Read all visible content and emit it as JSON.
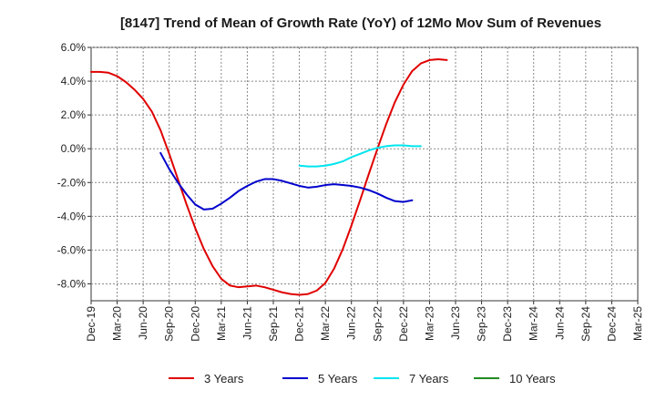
{
  "chart_data": {
    "type": "line",
    "title": "[8147]  Trend of Mean of Growth Rate (YoY) of 12Mo Mov Sum of Revenues",
    "xlabel": "",
    "ylabel": "",
    "ylim": [
      -9,
      6
    ],
    "grid": true,
    "legend_position": "bottom",
    "y_ticks": [
      6,
      4,
      2,
      0,
      -2,
      -4,
      -6,
      -8
    ],
    "y_tick_labels": [
      "6.0%",
      "4.0%",
      "2.0%",
      "0.0%",
      "-2.0%",
      "-4.0%",
      "-6.0%",
      "-8.0%"
    ],
    "x_tick_labels": [
      "Dec-19",
      "Mar-20",
      "Jun-20",
      "Sep-20",
      "Dec-20",
      "Mar-21",
      "Jun-21",
      "Sep-21",
      "Dec-21",
      "Mar-22",
      "Jun-22",
      "Sep-22",
      "Dec-22",
      "Mar-23",
      "Jun-23",
      "Sep-23",
      "Dec-23",
      "Mar-24",
      "Jun-24",
      "Sep-24",
      "Dec-24",
      "Mar-25"
    ],
    "series": [
      {
        "name": "3 Years",
        "color": "#e00000",
        "start_index": 0,
        "values": [
          4.55,
          4.55,
          4.5,
          4.3,
          3.95,
          3.5,
          2.95,
          2.2,
          1.1,
          -0.3,
          -1.8,
          -3.3,
          -4.7,
          -5.95,
          -6.95,
          -7.7,
          -8.1,
          -8.2,
          -8.15,
          -8.1,
          -8.2,
          -8.35,
          -8.5,
          -8.6,
          -8.65,
          -8.6,
          -8.4,
          -7.95,
          -7.1,
          -5.95,
          -4.55,
          -3.05,
          -1.5,
          0.0,
          1.45,
          2.75,
          3.8,
          4.6,
          5.05,
          5.25,
          5.3,
          5.25
        ]
      },
      {
        "name": "5 Years",
        "color": "#0000cc",
        "start_index": 8,
        "values": [
          -0.25,
          -1.2,
          -2.0,
          -2.7,
          -3.3,
          -3.6,
          -3.55,
          -3.25,
          -2.9,
          -2.5,
          -2.2,
          -1.95,
          -1.8,
          -1.8,
          -1.9,
          -2.05,
          -2.2,
          -2.3,
          -2.25,
          -2.15,
          -2.1,
          -2.15,
          -2.2,
          -2.3,
          -2.45,
          -2.65,
          -2.9,
          -3.1,
          -3.15,
          -3.05
        ]
      },
      {
        "name": "7 Years",
        "color": "#00e5ee",
        "start_index": 24,
        "values": [
          -1.0,
          -1.05,
          -1.05,
          -1.0,
          -0.9,
          -0.75,
          -0.5,
          -0.3,
          -0.1,
          0.05,
          0.15,
          0.2,
          0.2,
          0.15,
          0.15
        ]
      },
      {
        "name": "10 Years",
        "color": "#228b22",
        "start_index": 0,
        "values": []
      }
    ]
  }
}
